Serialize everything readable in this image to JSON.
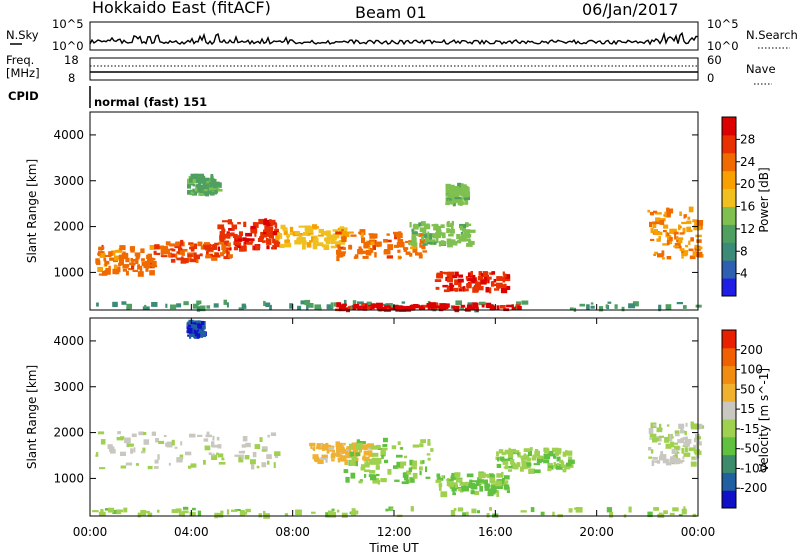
{
  "header": {
    "station": "Hokkaido East (fitACF)",
    "beam": "Beam 01",
    "date": "06/Jan/2017"
  },
  "noise_panel": {
    "left_label": "N.Sky",
    "right_label": "N.Search",
    "left_top_tick": "10^5",
    "left_bottom_tick": "10^0",
    "right_top_tick": "10^5",
    "right_bottom_tick": "10^0"
  },
  "freq_panel": {
    "left_label_line1": "Freq.",
    "left_label_line2": "[MHz]",
    "left_top_tick": "18",
    "left_bottom_tick": "8",
    "right_label": "Nave",
    "right_top_tick": "60",
    "right_bottom_tick": "0"
  },
  "cpid_panel": {
    "label": "CPID",
    "value": "normal (fast) 151"
  },
  "chart_data": [
    {
      "type": "heatmap",
      "name": "power",
      "ylabel": "Slant Range [km]",
      "yticks": [
        "1000",
        "2000",
        "3000",
        "4000"
      ],
      "colorbar_label": "Power [dB]",
      "colorbar_ticks": [
        "4",
        "8",
        "12",
        "16",
        "20",
        "24",
        "28"
      ],
      "colors": [
        "#1e1ee6",
        "#2f5fb0",
        "#3c8a78",
        "#4fa060",
        "#7fc050",
        "#f0c020",
        "#f7a000",
        "#f06a00",
        "#e83000",
        "#dd0000"
      ],
      "vmin": 0,
      "vmax": 32,
      "regions_note": "bands estimated by reading the image",
      "bands": [
        {
          "t0": 0.2,
          "t1": 2.5,
          "r0": 950,
          "r1": 1550,
          "v": 24
        },
        {
          "t0": 2.5,
          "t1": 5.5,
          "r0": 1250,
          "r1": 1650,
          "v": 26
        },
        {
          "t0": 5.0,
          "t1": 7.3,
          "r0": 1500,
          "r1": 2150,
          "v": 28
        },
        {
          "t0": 7.3,
          "t1": 10.0,
          "r0": 1550,
          "r1": 2000,
          "v": 18
        },
        {
          "t0": 9.6,
          "t1": 13.2,
          "r0": 1300,
          "r1": 1900,
          "v": 24
        },
        {
          "t0": 12.5,
          "t1": 15.0,
          "r0": 1600,
          "r1": 2100,
          "v": 14
        },
        {
          "t0": 13.6,
          "t1": 16.4,
          "r0": 600,
          "r1": 1000,
          "v": 28
        },
        {
          "t0": 14.0,
          "t1": 14.8,
          "r0": 2500,
          "r1": 2900,
          "v": 14
        },
        {
          "t0": 3.8,
          "t1": 5.0,
          "r0": 2700,
          "r1": 3100,
          "v": 12
        },
        {
          "t0": 22.0,
          "t1": 24.0,
          "r0": 1300,
          "r1": 2400,
          "v": 22
        },
        {
          "t0": 0.0,
          "t1": 24.0,
          "r0": 180,
          "r1": 350,
          "v": 10
        },
        {
          "t0": 9.5,
          "t1": 17.0,
          "r0": 180,
          "r1": 300,
          "v": 30
        }
      ]
    },
    {
      "type": "heatmap",
      "name": "velocity",
      "xlabel": "Time UT",
      "xticks": [
        "00:00",
        "04:00",
        "08:00",
        "12:00",
        "16:00",
        "20:00",
        "00:00"
      ],
      "xlim": [
        0,
        24
      ],
      "ylabel": "Slant Range [km]",
      "yticks": [
        "1000",
        "2000",
        "3000",
        "4000"
      ],
      "ylim": [
        180,
        4500
      ],
      "colorbar_label": "Velocity [m s^-1]",
      "colorbar_ticks": [
        "200",
        "100",
        "50",
        "15",
        "-15",
        "-50",
        "-100",
        "-200"
      ],
      "colors": [
        "#1010c8",
        "#2060a0",
        "#3c8c6c",
        "#60c040",
        "#a0d050",
        "#c8c8c0",
        "#f0b030",
        "#f08c10",
        "#f06000",
        "#e82000"
      ],
      "vmin": -250,
      "vmax": 250,
      "bands": [
        {
          "t0": 0.2,
          "t1": 7.3,
          "r0": 1200,
          "r1": 2000,
          "v": 0
        },
        {
          "t0": 3.8,
          "t1": 4.4,
          "r0": 4100,
          "r1": 4400,
          "v": -200
        },
        {
          "t0": 8.6,
          "t1": 11.0,
          "r0": 1350,
          "r1": 1750,
          "v": 70
        },
        {
          "t0": 10.0,
          "t1": 13.5,
          "r0": 900,
          "r1": 1850,
          "v": -40
        },
        {
          "t0": 13.6,
          "t1": 16.5,
          "r0": 650,
          "r1": 1100,
          "v": -60
        },
        {
          "t0": 16.0,
          "t1": 19.0,
          "r0": 1150,
          "r1": 1650,
          "v": -40
        },
        {
          "t0": 22.0,
          "t1": 24.0,
          "r0": 1300,
          "r1": 2200,
          "v": 0
        },
        {
          "t0": 0.0,
          "t1": 24.0,
          "r0": 180,
          "r1": 350,
          "v": -30
        }
      ]
    }
  ]
}
